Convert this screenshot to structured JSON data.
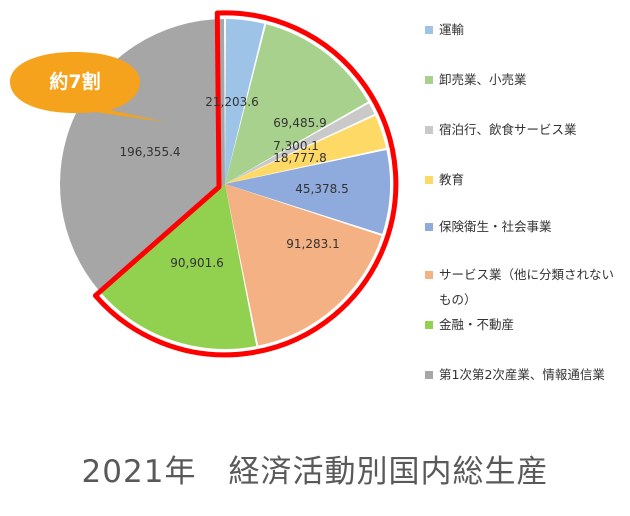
{
  "chart_data": {
    "type": "pie",
    "title": "2021年　経済活動別国内総生産",
    "slices": [
      {
        "name": "運輸",
        "value": 21203.6,
        "label": "21,203.6",
        "color": "#9dc3e6"
      },
      {
        "name": "卸売業、小売業",
        "value": 69485.9,
        "label": "69,485.9",
        "color": "#a9d18e"
      },
      {
        "name": "宿泊行、飲食サービス業",
        "value": 7300.1,
        "label": "7,300.1",
        "color": "#c9c9c9"
      },
      {
        "name": "教育",
        "value": 18777.8,
        "label": "18,777.8",
        "color": "#ffd966"
      },
      {
        "name": "保険衛生・社会事業",
        "value": 45378.5,
        "label": "45,378.5",
        "color": "#8faadc"
      },
      {
        "name": "サービス業（他に分類されないもの）",
        "value": 91283.1,
        "label": "91,283.1",
        "color": "#f4b183"
      },
      {
        "name": "金融・不動産",
        "value": 90901.6,
        "label": "90,901.6",
        "color": "#92d050"
      },
      {
        "name": "第1次第2次産業、情報通信業",
        "value": 196355.4,
        "label": "196,355.4",
        "color": "#a6a6a6"
      }
    ],
    "legend_position": "right",
    "callout": {
      "text": "約7割",
      "color": "#f5a21c"
    },
    "highlight_color": "#ff0000"
  }
}
